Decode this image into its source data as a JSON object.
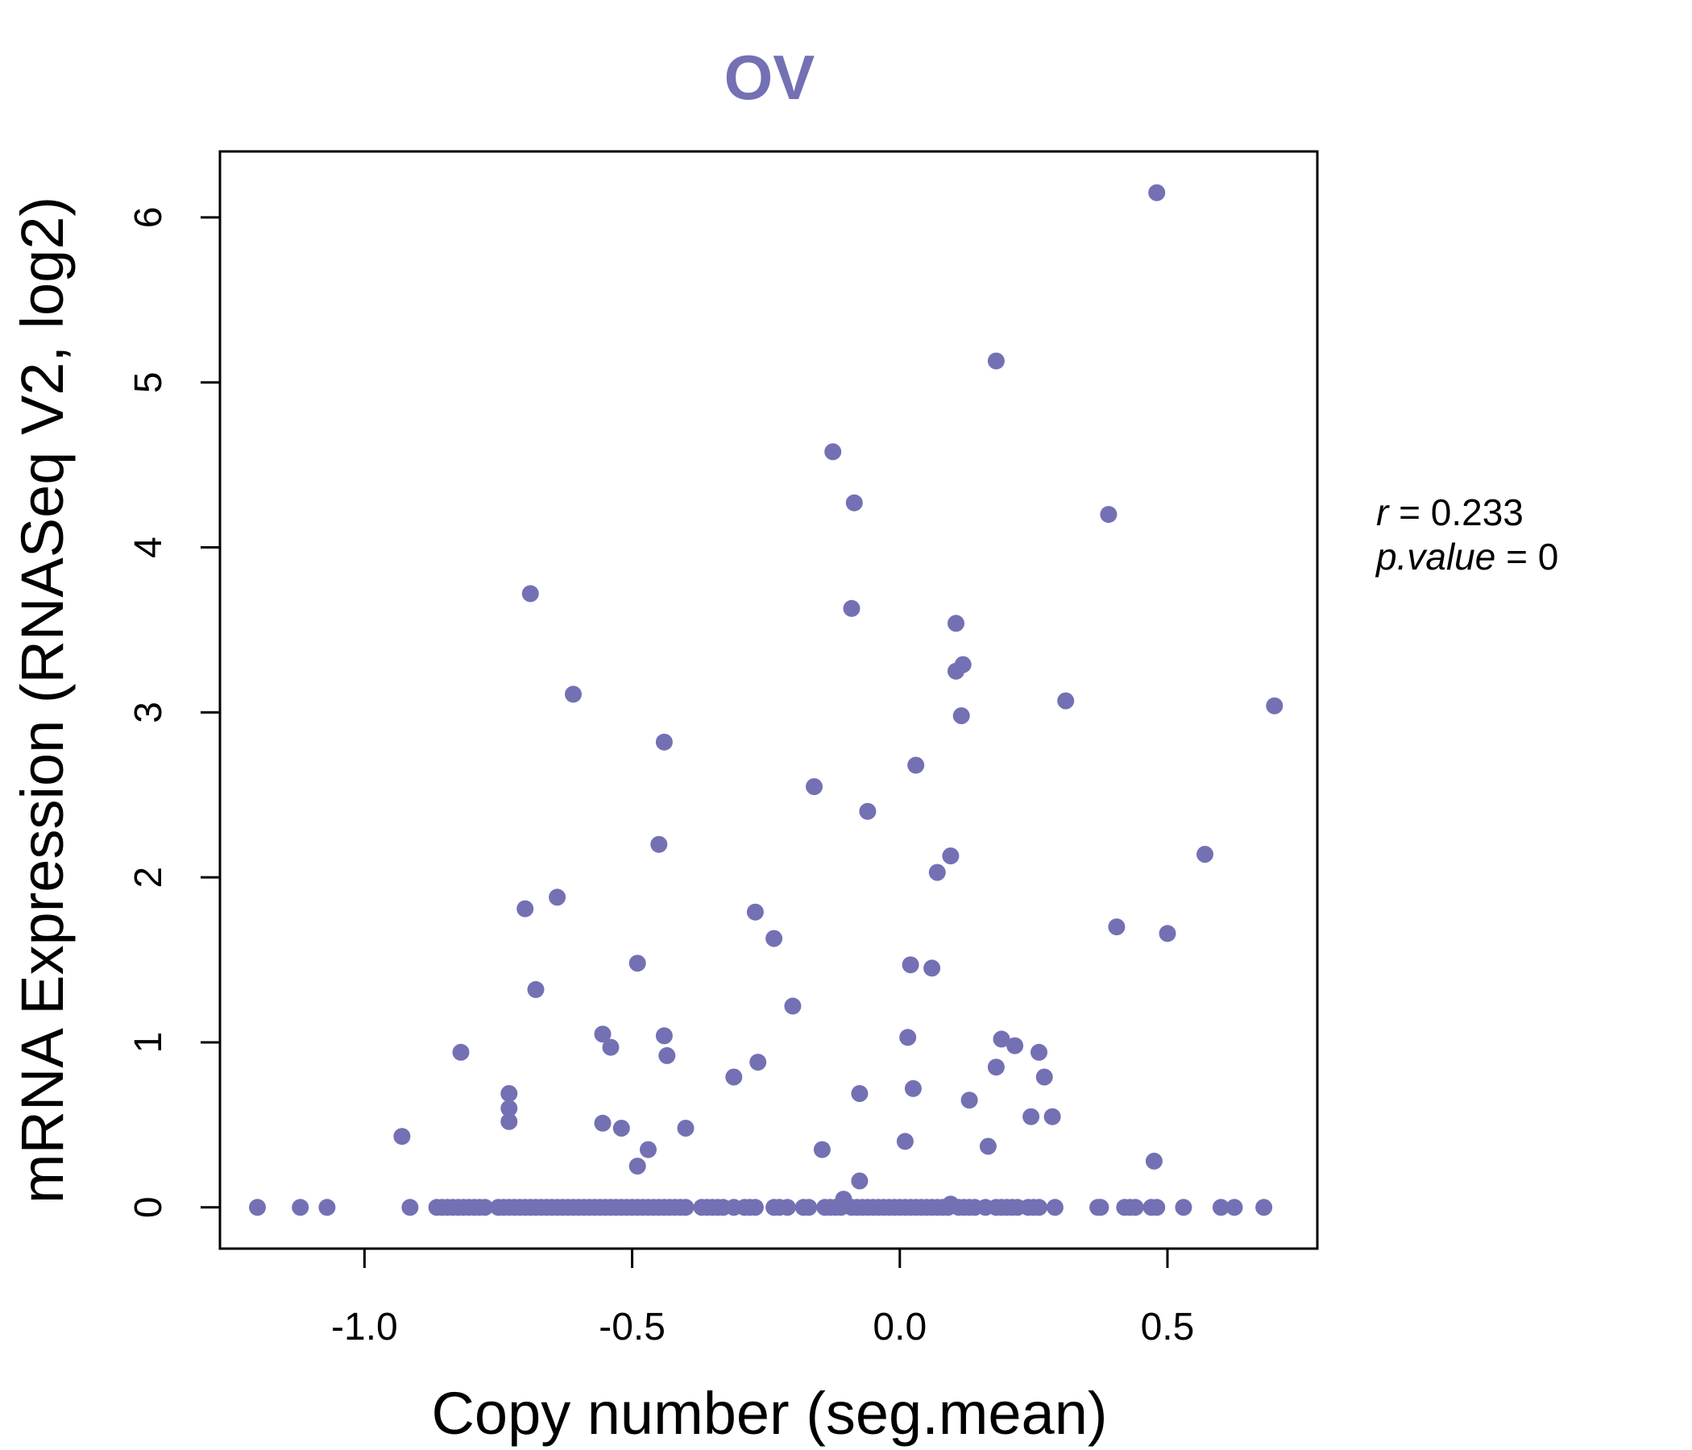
{
  "chart_data": {
    "type": "scatter",
    "title": "OV",
    "xlabel": "Copy number (seg.mean)",
    "ylabel": "mRNA Expression (RNASeq V2, log2)",
    "xlim": [
      -1.27,
      0.78
    ],
    "ylim": [
      -0.25,
      6.4
    ],
    "xticks": [
      -1.0,
      -0.5,
      0.0,
      0.5
    ],
    "xtick_labels": [
      "-1.0",
      "-0.5",
      "0.0",
      "0.5"
    ],
    "yticks": [
      0,
      1,
      2,
      3,
      4,
      5,
      6
    ],
    "ytick_labels": [
      "0",
      "1",
      "2",
      "3",
      "4",
      "5",
      "6"
    ],
    "grid": false,
    "series": [
      {
        "name": "OV samples",
        "color": "#7470b4",
        "points": [
          [
            0.48,
            6.15
          ],
          [
            0.18,
            5.13
          ],
          [
            -0.125,
            4.58
          ],
          [
            -0.085,
            4.27
          ],
          [
            0.39,
            4.2
          ],
          [
            -0.69,
            3.72
          ],
          [
            -0.09,
            3.63
          ],
          [
            0.105,
            3.54
          ],
          [
            0.118,
            3.29
          ],
          [
            0.105,
            3.25
          ],
          [
            -0.61,
            3.11
          ],
          [
            0.31,
            3.07
          ],
          [
            0.7,
            3.04
          ],
          [
            0.115,
            2.98
          ],
          [
            -0.44,
            2.82
          ],
          [
            0.03,
            2.68
          ],
          [
            -0.16,
            2.55
          ],
          [
            -0.06,
            2.4
          ],
          [
            -0.45,
            2.2
          ],
          [
            0.095,
            2.13
          ],
          [
            0.57,
            2.14
          ],
          [
            0.07,
            2.03
          ],
          [
            -0.64,
            1.88
          ],
          [
            -0.7,
            1.81
          ],
          [
            -0.27,
            1.79
          ],
          [
            0.405,
            1.7
          ],
          [
            0.5,
            1.66
          ],
          [
            -0.235,
            1.63
          ],
          [
            -0.49,
            1.48
          ],
          [
            0.02,
            1.47
          ],
          [
            0.06,
            1.45
          ],
          [
            -0.68,
            1.32
          ],
          [
            -0.2,
            1.22
          ],
          [
            -0.555,
            1.05
          ],
          [
            -0.44,
            1.04
          ],
          [
            0.015,
            1.03
          ],
          [
            0.19,
            1.02
          ],
          [
            0.215,
            0.98
          ],
          [
            -0.54,
            0.97
          ],
          [
            -0.82,
            0.94
          ],
          [
            0.26,
            0.94
          ],
          [
            -0.435,
            0.92
          ],
          [
            -0.265,
            0.88
          ],
          [
            0.18,
            0.85
          ],
          [
            -0.31,
            0.79
          ],
          [
            0.27,
            0.79
          ],
          [
            0.025,
            0.72
          ],
          [
            -0.73,
            0.69
          ],
          [
            -0.075,
            0.69
          ],
          [
            0.13,
            0.65
          ],
          [
            -0.73,
            0.6
          ],
          [
            0.245,
            0.55
          ],
          [
            0.285,
            0.55
          ],
          [
            -0.73,
            0.52
          ],
          [
            -0.555,
            0.51
          ],
          [
            -0.52,
            0.48
          ],
          [
            -0.4,
            0.48
          ],
          [
            -0.93,
            0.43
          ],
          [
            0.01,
            0.4
          ],
          [
            0.165,
            0.37
          ],
          [
            -0.47,
            0.35
          ],
          [
            -0.145,
            0.35
          ],
          [
            0.475,
            0.28
          ],
          [
            -0.49,
            0.25
          ],
          [
            -0.075,
            0.16
          ],
          [
            -0.105,
            0.05
          ],
          [
            0.095,
            0.02
          ],
          [
            -1.2,
            0
          ],
          [
            -1.12,
            0
          ],
          [
            -1.07,
            0
          ],
          [
            -0.915,
            0
          ],
          [
            -0.865,
            0
          ],
          [
            -0.855,
            0
          ],
          [
            -0.845,
            0
          ],
          [
            -0.835,
            0
          ],
          [
            -0.825,
            0
          ],
          [
            -0.815,
            0
          ],
          [
            -0.805,
            0
          ],
          [
            -0.795,
            0
          ],
          [
            -0.785,
            0
          ],
          [
            -0.775,
            0
          ],
          [
            -0.75,
            0
          ],
          [
            -0.74,
            0
          ],
          [
            -0.73,
            0
          ],
          [
            -0.72,
            0
          ],
          [
            -0.71,
            0
          ],
          [
            -0.7,
            0
          ],
          [
            -0.69,
            0
          ],
          [
            -0.68,
            0
          ],
          [
            -0.67,
            0
          ],
          [
            -0.66,
            0
          ],
          [
            -0.65,
            0
          ],
          [
            -0.64,
            0
          ],
          [
            -0.63,
            0
          ],
          [
            -0.62,
            0
          ],
          [
            -0.61,
            0
          ],
          [
            -0.6,
            0
          ],
          [
            -0.59,
            0
          ],
          [
            -0.58,
            0
          ],
          [
            -0.57,
            0
          ],
          [
            -0.56,
            0
          ],
          [
            -0.55,
            0
          ],
          [
            -0.54,
            0
          ],
          [
            -0.53,
            0
          ],
          [
            -0.52,
            0
          ],
          [
            -0.51,
            0
          ],
          [
            -0.5,
            0
          ],
          [
            -0.49,
            0
          ],
          [
            -0.48,
            0
          ],
          [
            -0.47,
            0
          ],
          [
            -0.46,
            0
          ],
          [
            -0.45,
            0
          ],
          [
            -0.44,
            0
          ],
          [
            -0.43,
            0
          ],
          [
            -0.42,
            0
          ],
          [
            -0.41,
            0
          ],
          [
            -0.4,
            0
          ],
          [
            -0.37,
            0
          ],
          [
            -0.36,
            0
          ],
          [
            -0.35,
            0
          ],
          [
            -0.34,
            0
          ],
          [
            -0.33,
            0
          ],
          [
            -0.31,
            0
          ],
          [
            -0.29,
            0
          ],
          [
            -0.28,
            0
          ],
          [
            -0.27,
            0
          ],
          [
            -0.235,
            0
          ],
          [
            -0.225,
            0
          ],
          [
            -0.21,
            0
          ],
          [
            -0.18,
            0
          ],
          [
            -0.17,
            0
          ],
          [
            -0.14,
            0
          ],
          [
            -0.13,
            0
          ],
          [
            -0.12,
            0
          ],
          [
            -0.11,
            0
          ],
          [
            -0.09,
            0
          ],
          [
            -0.08,
            0
          ],
          [
            -0.07,
            0
          ],
          [
            -0.06,
            0
          ],
          [
            -0.05,
            0
          ],
          [
            -0.04,
            0
          ],
          [
            -0.03,
            0
          ],
          [
            -0.02,
            0
          ],
          [
            -0.01,
            0
          ],
          [
            0.0,
            0
          ],
          [
            0.01,
            0
          ],
          [
            0.02,
            0
          ],
          [
            0.03,
            0
          ],
          [
            0.04,
            0
          ],
          [
            0.05,
            0
          ],
          [
            0.06,
            0
          ],
          [
            0.07,
            0
          ],
          [
            0.08,
            0
          ],
          [
            0.09,
            0
          ],
          [
            0.11,
            0
          ],
          [
            0.12,
            0
          ],
          [
            0.13,
            0
          ],
          [
            0.14,
            0
          ],
          [
            0.16,
            0
          ],
          [
            0.18,
            0
          ],
          [
            0.19,
            0
          ],
          [
            0.2,
            0
          ],
          [
            0.21,
            0
          ],
          [
            0.22,
            0
          ],
          [
            0.24,
            0
          ],
          [
            0.25,
            0
          ],
          [
            0.26,
            0
          ],
          [
            0.29,
            0
          ],
          [
            0.37,
            0
          ],
          [
            0.375,
            0
          ],
          [
            0.42,
            0
          ],
          [
            0.43,
            0
          ],
          [
            0.44,
            0
          ],
          [
            0.47,
            0
          ],
          [
            0.48,
            0
          ],
          [
            0.53,
            0
          ],
          [
            0.6,
            0
          ],
          [
            0.625,
            0
          ],
          [
            0.68,
            0
          ]
        ]
      }
    ],
    "annotations": {
      "r_label": "r",
      "r_value": "0.233",
      "p_label": "p.value",
      "p_value": "0",
      "equals": " = "
    }
  }
}
